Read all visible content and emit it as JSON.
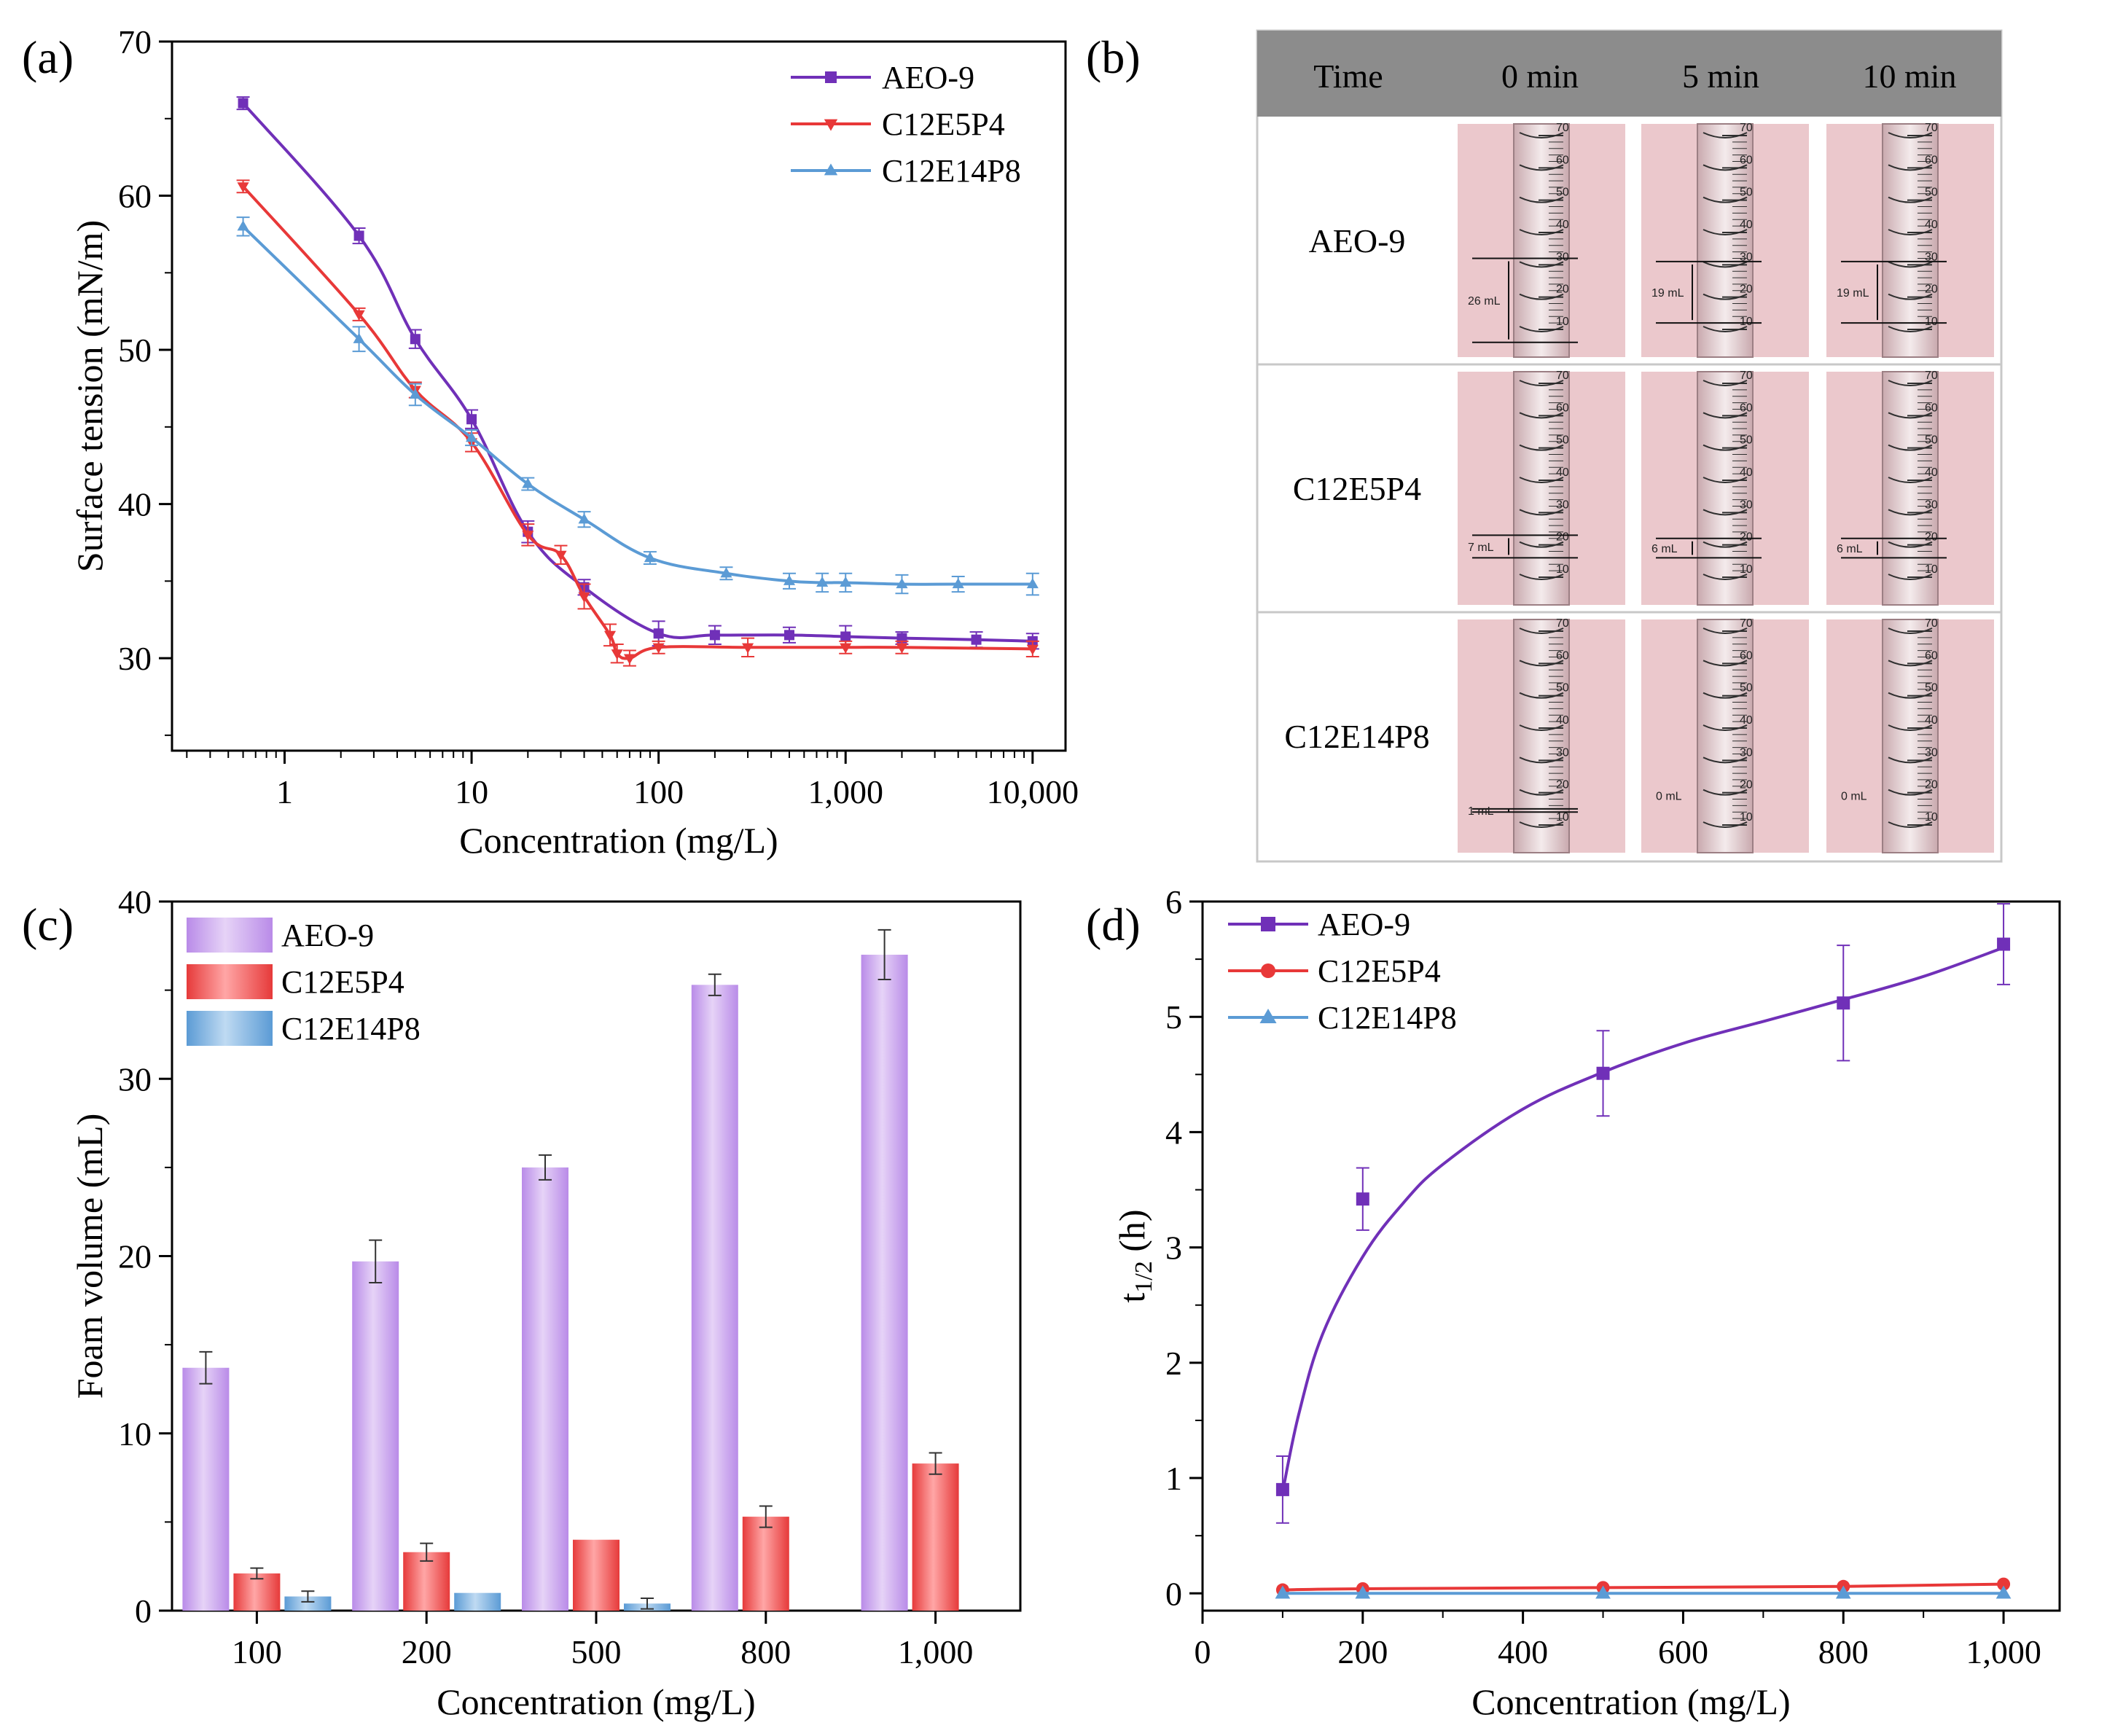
{
  "colors": {
    "aeo9": "#7030B8",
    "c12e5p4": "#E83838",
    "c12e14p8": "#5B9BD5",
    "aeo9_bar": "#C9A5EC",
    "c12e5p4_bar": "#F27070",
    "c12e14p8_bar": "#8EBDE6",
    "table_header": "#8C8C8C",
    "photo_bg": "#EBC8CC"
  },
  "chart_data": [
    {
      "panel": "(a)",
      "type": "line",
      "xscale": "log",
      "xlabel": "Concentration (mg/L)",
      "ylabel": "Surface tension (mN/m)",
      "xlim": [
        0.25,
        15000
      ],
      "ylim": [
        24,
        70
      ],
      "xticks": [
        {
          "value": 1,
          "label": "1"
        },
        {
          "value": 10,
          "label": "10"
        },
        {
          "value": 100,
          "label": "100"
        },
        {
          "value": 1000,
          "label": "1,000"
        },
        {
          "value": 10000,
          "label": "10,000"
        }
      ],
      "yticks": [
        {
          "value": 30,
          "label": "30"
        },
        {
          "value": 40,
          "label": "40"
        },
        {
          "value": 50,
          "label": "50"
        },
        {
          "value": 60,
          "label": "60"
        },
        {
          "value": 70,
          "label": "70"
        }
      ],
      "legend_position": "top-right",
      "series": [
        {
          "name": "AEO-9",
          "color_key": "aeo9",
          "marker": "square",
          "x": [
            0.6,
            2.5,
            5,
            10,
            20,
            40,
            100,
            200,
            500,
            1000,
            2000,
            5000,
            10000
          ],
          "y": [
            66.0,
            57.4,
            50.7,
            45.5,
            38.2,
            34.6,
            31.6,
            31.5,
            31.5,
            31.4,
            31.3,
            31.2,
            31.1
          ],
          "err": [
            0.4,
            0.5,
            0.6,
            0.6,
            0.7,
            0.5,
            0.8,
            0.6,
            0.5,
            0.7,
            0.4,
            0.5,
            0.5
          ]
        },
        {
          "name": "C12E5P4",
          "color_key": "c12e5p4",
          "marker": "triangle-down",
          "x": [
            0.6,
            2.5,
            5,
            10,
            20,
            30,
            40,
            55,
            60,
            70,
            100,
            300,
            1000,
            2000,
            10000
          ],
          "y": [
            60.6,
            52.3,
            47.4,
            44.0,
            38.0,
            36.7,
            34.0,
            31.5,
            30.3,
            30.0,
            30.7,
            30.7,
            30.7,
            30.7,
            30.6
          ],
          "err": [
            0.4,
            0.4,
            0.5,
            0.6,
            0.7,
            0.6,
            0.8,
            0.7,
            0.6,
            0.5,
            0.4,
            0.6,
            0.4,
            0.4,
            0.5
          ]
        },
        {
          "name": "C12E14P8",
          "color_key": "c12e14p8",
          "marker": "triangle-up",
          "x": [
            0.6,
            2.5,
            5,
            10,
            20,
            40,
            90,
            230,
            500,
            750,
            1000,
            2000,
            4000,
            10000
          ],
          "y": [
            58.0,
            50.7,
            47.1,
            44.3,
            41.3,
            39.0,
            36.5,
            35.5,
            35.0,
            34.9,
            34.9,
            34.8,
            34.8,
            34.8
          ],
          "err": [
            0.6,
            0.8,
            0.7,
            0.5,
            0.4,
            0.5,
            0.4,
            0.4,
            0.5,
            0.6,
            0.6,
            0.6,
            0.5,
            0.7
          ]
        }
      ]
    },
    {
      "panel": "(c)",
      "type": "bar",
      "xlabel": "Concentration (mg/L)",
      "ylabel": "Foam volume (mL)",
      "categories": [
        "100",
        "200",
        "500",
        "800",
        "1,000"
      ],
      "ylim": [
        0,
        40
      ],
      "yticks": [
        {
          "value": 0,
          "label": "0"
        },
        {
          "value": 10,
          "label": "10"
        },
        {
          "value": 20,
          "label": "20"
        },
        {
          "value": 30,
          "label": "30"
        },
        {
          "value": 40,
          "label": "40"
        }
      ],
      "legend_position": "top-left",
      "series": [
        {
          "name": "AEO-9",
          "color_key": "aeo9_bar",
          "values": [
            13.7,
            19.7,
            25.0,
            35.3,
            37.0
          ],
          "err": [
            0.9,
            1.2,
            0.7,
            0.6,
            1.4
          ]
        },
        {
          "name": "C12E5P4",
          "color_key": "c12e5p4_bar",
          "values": [
            2.1,
            3.3,
            4.0,
            5.3,
            8.3
          ],
          "err": [
            0.3,
            0.5,
            0.0,
            0.6,
            0.6
          ]
        },
        {
          "name": "C12E14P8",
          "color_key": "c12e14p8_bar",
          "values": [
            0.8,
            1.0,
            0.4,
            0.0,
            0.0
          ],
          "err": [
            0.3,
            0.0,
            0.3,
            0.0,
            0.0
          ]
        }
      ]
    },
    {
      "panel": "(d)",
      "type": "line",
      "xlabel": "Concentration (mg/L)",
      "ylabel_main": "t",
      "ylabel_sub": "1/2",
      "ylabel_unit": " (h)",
      "xlim": [
        0,
        1070
      ],
      "ylim": [
        -0.15,
        6
      ],
      "xticks": [
        {
          "value": 0,
          "label": "0"
        },
        {
          "value": 200,
          "label": "200"
        },
        {
          "value": 400,
          "label": "400"
        },
        {
          "value": 600,
          "label": "600"
        },
        {
          "value": 800,
          "label": "800"
        },
        {
          "value": 1000,
          "label": "1,000"
        }
      ],
      "yticks": [
        {
          "value": 0,
          "label": "0"
        },
        {
          "value": 1,
          "label": "1"
        },
        {
          "value": 2,
          "label": "2"
        },
        {
          "value": 3,
          "label": "3"
        },
        {
          "value": 4,
          "label": "4"
        },
        {
          "value": 5,
          "label": "5"
        },
        {
          "value": 6,
          "label": "6"
        }
      ],
      "legend_position": "top-left",
      "series": [
        {
          "name": "AEO-9",
          "color_key": "aeo9",
          "marker": "square",
          "x": [
            100,
            200,
            500,
            800,
            1000
          ],
          "y": [
            0.9,
            3.42,
            4.51,
            5.12,
            5.63
          ],
          "err": [
            0.29,
            0.27,
            0.37,
            0.5,
            0.35
          ],
          "fit": {
            "x": [
              100,
              120,
              150,
              200,
              250,
              300,
              400,
              500,
              600,
              700,
              800,
              900,
              1000
            ],
            "y": [
              0.88,
              1.55,
              2.25,
              2.92,
              3.38,
              3.72,
              4.2,
              4.52,
              4.77,
              4.96,
              5.15,
              5.35,
              5.6
            ]
          }
        },
        {
          "name": "C12E5P4",
          "color_key": "c12e5p4",
          "marker": "circle",
          "x": [
            100,
            200,
            500,
            800,
            1000
          ],
          "y": [
            0.03,
            0.04,
            0.05,
            0.06,
            0.08
          ],
          "err": [
            0,
            0,
            0,
            0,
            0
          ]
        },
        {
          "name": "C12E14P8",
          "color_key": "c12e14p8",
          "marker": "triangle-up",
          "x": [
            100,
            200,
            500,
            800,
            1000
          ],
          "y": [
            0.0,
            0.0,
            0.0,
            0.0,
            0.0
          ],
          "err": [
            0,
            0,
            0,
            0,
            0
          ]
        }
      ]
    }
  ],
  "panel_b": {
    "label": "(b)",
    "headers": [
      "Time",
      "0 min",
      "5 min",
      "10 min"
    ],
    "rows": [
      {
        "name": "AEO-9",
        "photos": [
          {
            "annotation": "26 mL",
            "top_ml": 32,
            "bottom_ml": 6
          },
          {
            "annotation": "19 mL",
            "top_ml": 31,
            "bottom_ml": 12
          },
          {
            "annotation": "19 mL",
            "top_ml": 31,
            "bottom_ml": 12
          }
        ]
      },
      {
        "name": "C12E5P4",
        "photos": [
          {
            "annotation": "7 mL",
            "top_ml": 23,
            "bottom_ml": 16
          },
          {
            "annotation": "6 mL",
            "top_ml": 22,
            "bottom_ml": 16
          },
          {
            "annotation": "6 mL",
            "top_ml": 22,
            "bottom_ml": 16
          }
        ]
      },
      {
        "name": "C12E14P8",
        "photos": [
          {
            "annotation": "1 mL",
            "top_ml": 15,
            "bottom_ml": 14
          },
          {
            "annotation": "0 mL",
            "top_ml": null,
            "bottom_ml": null
          },
          {
            "annotation": "0 mL",
            "top_ml": null,
            "bottom_ml": null
          }
        ]
      }
    ],
    "cylinder_scale": [
      "10",
      "20",
      "30",
      "40",
      "50",
      "60",
      "70"
    ]
  }
}
